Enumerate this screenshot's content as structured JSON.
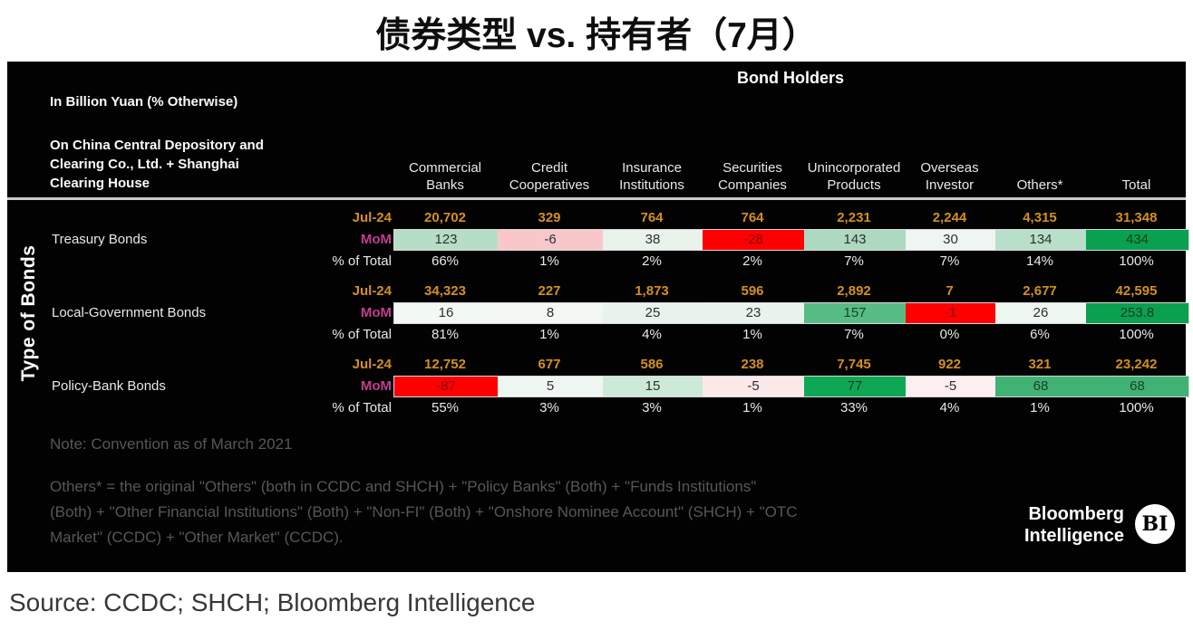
{
  "title": "债券类型 vs. 持有者（7月）",
  "source": "Source: CCDC; SHCH; Bloomberg Intelligence",
  "colors": {
    "board_background": "#020202",
    "jul24_orange": "#d3901d",
    "mom_magenta": "#c43c90",
    "positive_green": "#09a04f",
    "negative_red": "#fe0000",
    "note_gray": "#575757"
  },
  "table": {
    "bond_holders_title": "Bond Holders",
    "units_label": "In Billion Yuan (% Otherwise)",
    "depository_lines": {
      "l1": "On China Central Depository and",
      "l2": "Clearing Co., Ltd. + Shanghai",
      "l3": "Clearing House"
    },
    "axis_label": "Type of Bonds",
    "row_labels": {
      "jul24": "Jul-24",
      "mom": "MoM",
      "pct": "% of Total"
    },
    "columns": [
      {
        "line1": "Commercial",
        "line2": "Banks"
      },
      {
        "line1": "Credit",
        "line2": "Cooperatives"
      },
      {
        "line1": "Insurance",
        "line2": "Institutions"
      },
      {
        "line1": "Securities",
        "line2": "Companies"
      },
      {
        "line1": "Unincorporated",
        "line2": "Products"
      },
      {
        "line1": "Overseas",
        "line2": "Investor"
      },
      {
        "line1": "Others*"
      },
      {
        "line1": "Total"
      }
    ],
    "groups": [
      {
        "name": "Treasury Bonds",
        "jul24": [
          "20,702",
          "329",
          "764",
          "764",
          "2,231",
          "2,244",
          "4,315",
          "31,348"
        ],
        "mom": [
          "123",
          "-6",
          "38",
          "-28",
          "143",
          "30",
          "134",
          "434"
        ],
        "mom_bg": [
          "#b6dec7",
          "#f9c7cb",
          "#e9f3ec",
          "#fe0000",
          "#add9c1",
          "#eff6f1",
          "#b7dfc9",
          "#09a04f"
        ],
        "mom_fg": [
          "#2f2f2f",
          "#2f2f2f",
          "#2f2f2f",
          "#7d1013",
          "#2f2f2f",
          "#2f2f2f",
          "#2f2f2f",
          "#123e23"
        ],
        "pct": [
          "66%",
          "1%",
          "2%",
          "2%",
          "7%",
          "7%",
          "14%",
          "100%"
        ]
      },
      {
        "name": "Local-Government Bonds",
        "jul24": [
          "34,323",
          "227",
          "1,873",
          "596",
          "2,892",
          "7",
          "2,677",
          "42,595"
        ],
        "mom": [
          "16",
          "8",
          "25",
          "23",
          "157",
          "-1",
          "26",
          "253.8"
        ],
        "mom_bg": [
          "#f2f8f4",
          "#f3f8f4",
          "#e8f3eb",
          "#eaf4ed",
          "#57bd85",
          "#fe0000",
          "#eef6f0",
          "#09a04f"
        ],
        "mom_fg": [
          "#2f2f2f",
          "#2f2f2f",
          "#2f2f2f",
          "#2f2f2f",
          "#1d4027",
          "#7d1013",
          "#2f2f2f",
          "#123e23"
        ],
        "pct": [
          "81%",
          "1%",
          "4%",
          "1%",
          "7%",
          "0%",
          "6%",
          "100%"
        ]
      },
      {
        "name": "Policy-Bank Bonds",
        "jul24": [
          "12,752",
          "677",
          "586",
          "238",
          "7,745",
          "922",
          "321",
          "23,242"
        ],
        "mom": [
          "-87",
          "5",
          "15",
          "-5",
          "77",
          "-5",
          "68",
          "68"
        ],
        "mom_bg": [
          "#fe0000",
          "#eff6f1",
          "#cde9d8",
          "#fbe9ea",
          "#0ea855",
          "#fdeef0",
          "#40b274",
          "#40b274"
        ],
        "mom_fg": [
          "#7d1013",
          "#2f2f2f",
          "#2f2f2f",
          "#2f2f2f",
          "#123e23",
          "#2f2f2f",
          "#193f28",
          "#193f28"
        ],
        "pct": [
          "55%",
          "3%",
          "3%",
          "1%",
          "33%",
          "4%",
          "1%",
          "100%"
        ]
      }
    ],
    "note": {
      "line1": "Note: Convention as of March 2021",
      "others_lines": {
        "l1": "Others* = the original \"Others\" (both in CCDC and SHCH) + \"Policy Banks\" (Both) + \"Funds Institutions\"",
        "l2": "(Both) + \"Other Financial Institutions\" (Both) + \"Non-FI\" (Both) + \"Onshore Nominee Account\" (SHCH) + \"OTC",
        "l3": "Market\" (CCDC) + \"Other Market\" (CCDC)."
      }
    },
    "logo": {
      "line1": "Bloomberg",
      "line2": "Intelligence",
      "badge": "BI"
    }
  },
  "chart_data": {
    "type": "table",
    "title": "债券类型 vs. 持有者（7月）",
    "subtitle": "Bond Holders",
    "units": "In Billion Yuan (% Otherwise)",
    "columns": [
      "Commercial Banks",
      "Credit Cooperatives",
      "Insurance Institutions",
      "Securities Companies",
      "Unincorporated Products",
      "Overseas Investor",
      "Others*",
      "Total"
    ],
    "row_groups": [
      {
        "bond_type": "Treasury Bonds",
        "jul_24": [
          20702,
          329,
          764,
          764,
          2231,
          2244,
          4315,
          31348
        ],
        "mom": [
          123,
          -6,
          38,
          -28,
          143,
          30,
          134,
          434
        ],
        "pct_of_total": [
          "66%",
          "1%",
          "2%",
          "2%",
          "7%",
          "7%",
          "14%",
          "100%"
        ]
      },
      {
        "bond_type": "Local-Government Bonds",
        "jul_24": [
          34323,
          227,
          1873,
          596,
          2892,
          7,
          2677,
          42595
        ],
        "mom": [
          16,
          8,
          25,
          23,
          157,
          -1,
          26,
          253.8
        ],
        "pct_of_total": [
          "81%",
          "1%",
          "4%",
          "1%",
          "7%",
          "0%",
          "6%",
          "100%"
        ]
      },
      {
        "bond_type": "Policy-Bank Bonds",
        "jul_24": [
          12752,
          677,
          586,
          238,
          7745,
          922,
          321,
          23242
        ],
        "mom": [
          -87,
          5,
          15,
          -5,
          77,
          -5,
          68,
          68
        ],
        "pct_of_total": [
          "55%",
          "3%",
          "3%",
          "1%",
          "33%",
          "4%",
          "1%",
          "100%"
        ]
      }
    ],
    "legend_note": "MoM row cells are heat-colored: green = increase, red/pink = decrease"
  }
}
